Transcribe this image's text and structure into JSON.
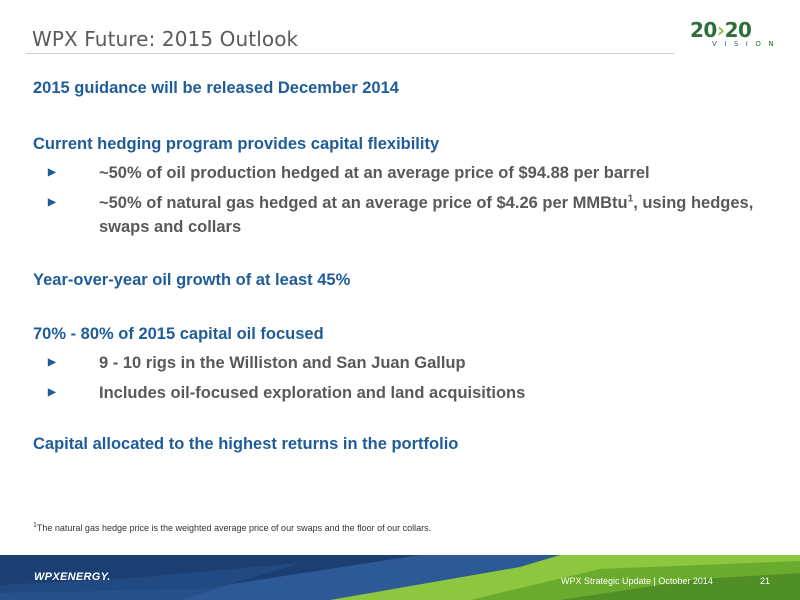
{
  "header": {
    "title": "WPX Future: 2015 Outlook",
    "logo_main_left": "20",
    "logo_chevron": "›",
    "logo_main_right": "20",
    "logo_sub": "VISION"
  },
  "sections": [
    {
      "heading": "2015 guidance will be released December 2014",
      "bullets": []
    },
    {
      "heading": "Current hedging program provides capital flexibility",
      "bullets": [
        {
          "text": "~50% of oil production hedged at an average price of $94.88 per barrel"
        },
        {
          "text_before": "~50% of natural gas hedged at an average price of $4.26 per MMBtu",
          "sup": "1",
          "text_after": ", using hedges, swaps and collars"
        }
      ]
    },
    {
      "heading": "Year-over-year oil growth of at least 45%",
      "bullets": []
    },
    {
      "heading": "70% - 80% of 2015 capital oil focused",
      "bullets": [
        {
          "text": "9 - 10 rigs in the Williston and San Juan Gallup"
        },
        {
          "text": "Includes oil-focused exploration and land acquisitions"
        }
      ]
    },
    {
      "heading": "Capital allocated to the highest returns in the portfolio",
      "bullets": []
    }
  ],
  "bullet_marker": "▶",
  "footnote": {
    "sup": "1",
    "text": "The natural gas hedge price is the weighted average price of our swaps and the floor of our collars."
  },
  "footer": {
    "logo_text": "WPXENERGY.",
    "text": "WPX Strategic Update | October 2014",
    "page_number": "21"
  },
  "colors": {
    "heading_blue": "#1f5c99",
    "bullet_gray": "#595959",
    "footer_navy": "#1b3f73",
    "footer_green": "#8dc63f",
    "logo_green": "#2f6e3a"
  }
}
